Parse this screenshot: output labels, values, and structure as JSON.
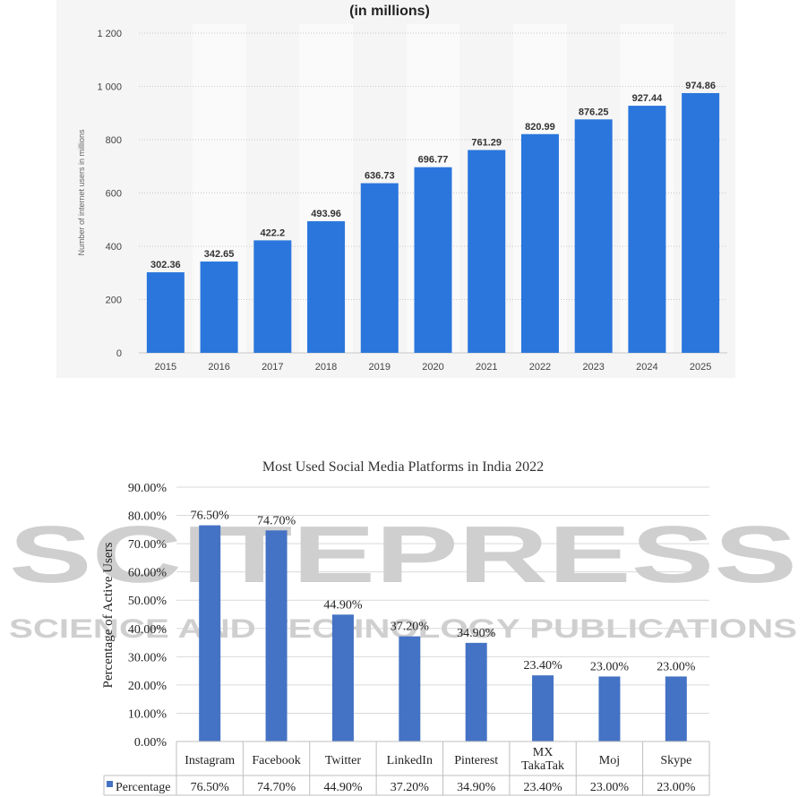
{
  "chart_data": [
    {
      "type": "bar",
      "title": "(in millions)",
      "ylabel": "Number of internet users in millions",
      "xlabel": "",
      "categories": [
        "2015",
        "2016",
        "2017",
        "2018",
        "2019",
        "2020",
        "2021",
        "2022",
        "2023",
        "2024",
        "2025"
      ],
      "values": [
        302.36,
        342.65,
        422.2,
        493.96,
        636.73,
        696.77,
        761.29,
        820.99,
        876.25,
        927.44,
        974.86
      ],
      "value_labels": [
        "302.36",
        "342.65",
        "422.2",
        "493.96",
        "636.73",
        "696.77",
        "761.29",
        "820.99",
        "876.25",
        "927.44",
        "974.86"
      ],
      "yticks": [
        0,
        200,
        400,
        600,
        800,
        1000,
        1200
      ],
      "ytick_labels": [
        "0",
        "200",
        "400",
        "600",
        "800",
        "1 000",
        "1 200"
      ],
      "ylim": [
        0,
        1200
      ],
      "grid": true,
      "bar_color": "#2a76dd"
    },
    {
      "type": "bar",
      "title": "Most Used Social Media Platforms in India 2022",
      "ylabel": "Percentage of Active Users",
      "xlabel": "",
      "categories": [
        "Instagram",
        "Facebook",
        "Twitter",
        "LinkedIn",
        "Pinterest",
        "MX TakaTak",
        "Moj",
        "Skype"
      ],
      "category_lines": [
        [
          "Instagram"
        ],
        [
          "Facebook"
        ],
        [
          "Twitter"
        ],
        [
          "LinkedIn"
        ],
        [
          "Pinterest"
        ],
        [
          "MX",
          "TakaTak"
        ],
        [
          "Moj"
        ],
        [
          "Skype"
        ]
      ],
      "series": [
        {
          "name": "Percentage",
          "values": [
            76.5,
            74.7,
            44.9,
            37.2,
            34.9,
            23.4,
            23.0,
            23.0
          ],
          "labels": [
            "76.50%",
            "74.70%",
            "44.90%",
            "37.20%",
            "34.90%",
            "23.40%",
            "23.00%",
            "23.00%"
          ]
        }
      ],
      "yticks": [
        0,
        10,
        20,
        30,
        40,
        50,
        60,
        70,
        80,
        90
      ],
      "ytick_labels": [
        "0.00%",
        "10.00%",
        "20.00%",
        "30.00%",
        "40.00%",
        "50.00%",
        "60.00%",
        "70.00%",
        "80.00%",
        "90.00%"
      ],
      "ylim": [
        0,
        90
      ],
      "grid": true,
      "legend": "data-table",
      "bar_color": "#4472c4"
    }
  ],
  "watermark": {
    "line1": "SCITEPRESS",
    "line2": "SCIENCE AND TECHNOLOGY PUBLICATIONS"
  }
}
